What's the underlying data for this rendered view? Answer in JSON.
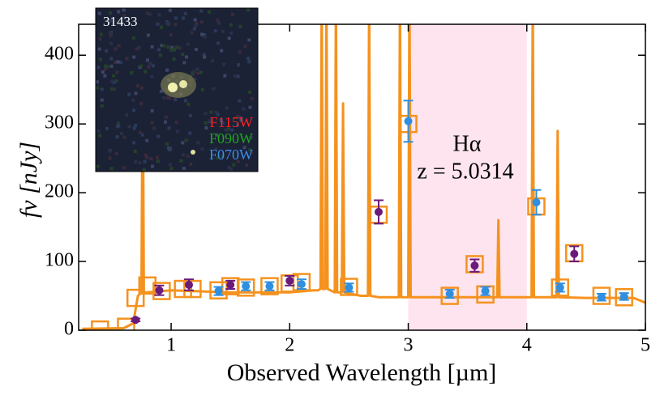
{
  "chart_data": {
    "type": "sed",
    "x_label": "Observed Wavelength [µm]",
    "y_label": "fν [nJy]",
    "xlim": [
      0.22,
      5
    ],
    "ylim": [
      0,
      445
    ],
    "xticks": [
      1,
      2,
      3,
      4,
      5
    ],
    "yticks": [
      0,
      100,
      200,
      300,
      400
    ],
    "highlight_range": [
      3,
      4
    ],
    "highlight_color": "#fde4ee",
    "annotations": [
      "Hα",
      "z = 5.0314"
    ],
    "inset": {
      "id": "31433",
      "filters": [
        {
          "name": "F115W",
          "color": "#ff2020"
        },
        {
          "name": "F090W",
          "color": "#1fa31f"
        },
        {
          "name": "F070W",
          "color": "#3a8eea"
        }
      ]
    },
    "model_color": "#f5921e",
    "model_spectrum": {
      "x": [
        0.25,
        0.6,
        0.68,
        0.72,
        0.75,
        0.76,
        0.77,
        0.8,
        1.0,
        1.5,
        2.0,
        2.2,
        2.24,
        2.26,
        2.27,
        2.28,
        2.3,
        2.31,
        2.32,
        2.38,
        2.39,
        2.4,
        2.44,
        2.45,
        2.46,
        2.6,
        2.66,
        2.67,
        2.68,
        2.75,
        2.9,
        2.92,
        2.93,
        2.94,
        3.0,
        3.01,
        3.02,
        3.5,
        3.75,
        3.76,
        3.77,
        3.9,
        4.04,
        4.05,
        4.06,
        4.25,
        4.26,
        4.27,
        4.5,
        4.9,
        5.0
      ],
      "values": [
        2,
        3,
        10,
        50,
        55,
        420,
        55,
        55,
        58,
        55,
        55,
        58,
        58,
        60,
        500,
        60,
        60,
        500,
        60,
        55,
        500,
        55,
        55,
        330,
        55,
        50,
        50,
        500,
        50,
        48,
        48,
        48,
        500,
        48,
        48,
        500,
        48,
        48,
        48,
        160,
        48,
        48,
        48,
        500,
        48,
        48,
        290,
        48,
        47,
        47,
        40
      ]
    },
    "model_photometry": {
      "x": [
        0.4,
        0.62,
        0.7,
        0.8,
        0.92,
        1.1,
        1.18,
        1.4,
        1.5,
        1.63,
        1.83,
        2.0,
        2.1,
        2.5,
        2.75,
        3.0,
        3.35,
        3.56,
        3.65,
        4.08,
        4.28,
        4.4,
        4.63,
        4.82
      ],
      "values": [
        1,
        5,
        47,
        65,
        57,
        60,
        60,
        58,
        64,
        62,
        64,
        68,
        70,
        63,
        168,
        300,
        50,
        96,
        52,
        180,
        62,
        112,
        50,
        48
      ]
    },
    "photometry": [
      {
        "color": "#6a1b7a",
        "x": [
          0.7,
          0.9,
          1.15,
          1.5,
          2.0,
          2.75,
          3.56,
          4.4
        ],
        "values": [
          15,
          58,
          66,
          66,
          72,
          172,
          94,
          111
        ],
        "errors": [
          2,
          7,
          8,
          6,
          7,
          17,
          9,
          11
        ]
      },
      {
        "color": "#2f8fe0",
        "x": [
          1.4,
          1.63,
          1.83,
          2.1,
          2.5,
          3.0,
          3.35,
          3.65,
          4.08,
          4.28,
          4.63,
          4.82
        ],
        "values": [
          57,
          64,
          64,
          67,
          62,
          304,
          53,
          57,
          186,
          62,
          48,
          49
        ],
        "errors": [
          6,
          6,
          6,
          7,
          6,
          30,
          6,
          6,
          18,
          6,
          5,
          5
        ]
      }
    ]
  }
}
